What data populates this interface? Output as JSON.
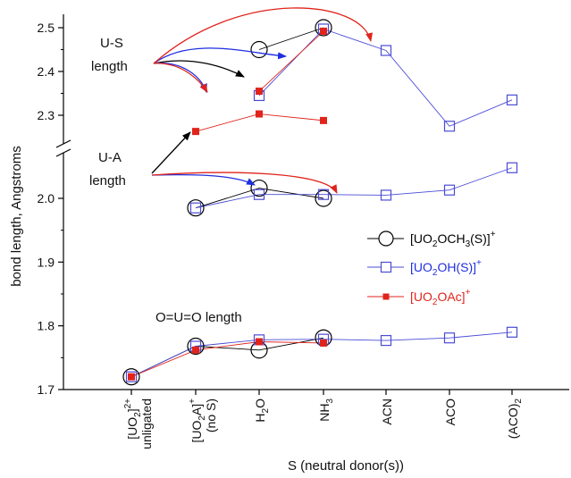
{
  "chart_data": {
    "type": "scatter",
    "xlabel": "S (neutral donor(s))",
    "ylabel": "bond length, Angstroms",
    "categories": [
      {
        "main": "[UO",
        "sub": "2",
        "rest": "]",
        "sup": "2+",
        "line2": "unligated"
      },
      {
        "main": "[UO",
        "sub": "2",
        "rest": "A]",
        "sup": "+",
        "line2": "(no S)"
      },
      {
        "main": "H",
        "sub": "2",
        "rest": "O",
        "sup": "",
        "line2": ""
      },
      {
        "main": "NH",
        "sub": "3",
        "rest": "",
        "sup": "",
        "line2": ""
      },
      {
        "main": "ACN",
        "sub": "",
        "rest": "",
        "sup": "",
        "line2": ""
      },
      {
        "main": "ACO",
        "sub": "",
        "rest": "",
        "sup": "",
        "line2": ""
      },
      {
        "main": "(ACO)",
        "sub": "2",
        "rest": "",
        "sup": "",
        "line2": ""
      }
    ],
    "y_axis": {
      "lower_segment": {
        "range": [
          1.7,
          2.05
        ],
        "ticks": [
          "1.7",
          "1.8",
          "1.9",
          "2.0"
        ]
      },
      "upper_segment": {
        "range": [
          2.25,
          2.53
        ],
        "ticks": [
          "2.3",
          "2.4",
          "2.5"
        ]
      },
      "axis_break": true
    },
    "series": [
      {
        "name": "[UO2OCH3(S)]+",
        "legend": {
          "a": "[UO",
          "s1": "2",
          "b": "OCH",
          "s2": "3",
          "c": "(S)]",
          "sup": "+"
        },
        "color": "#000000",
        "marker": "open-circle",
        "groups": [
          [
            [
              0,
              1.72
            ],
            [
              1,
              1.768
            ],
            [
              2,
              1.762
            ],
            [
              3,
              1.781
            ]
          ],
          [
            [
              1,
              1.985
            ],
            [
              2,
              2.016
            ],
            [
              3,
              2.0
            ]
          ],
          [
            [
              2,
              2.45
            ],
            [
              3,
              2.5
            ]
          ]
        ]
      },
      {
        "name": "[UO2OH(S)]+",
        "legend": {
          "a": "[UO",
          "s1": "2",
          "b": "OH(S)]",
          "s2": "",
          "c": "",
          "sup": "+"
        },
        "color": "#4b4bd6",
        "marker": "open-square",
        "groups": [
          [
            [
              0,
              1.72
            ],
            [
              1,
              1.768
            ],
            [
              2,
              1.778
            ],
            [
              3,
              1.779
            ],
            [
              4,
              1.777
            ],
            [
              5,
              1.781
            ],
            [
              6,
              1.79
            ]
          ],
          [
            [
              1,
              1.985
            ],
            [
              2,
              2.006
            ],
            [
              3,
              2.006
            ],
            [
              4,
              2.005
            ],
            [
              5,
              2.013
            ],
            [
              6,
              2.048
            ]
          ],
          [
            [
              2,
              2.345
            ],
            [
              3,
              2.497
            ],
            [
              4,
              2.448
            ],
            [
              5,
              2.275
            ],
            [
              6,
              2.335
            ]
          ]
        ]
      },
      {
        "name": "[UO2OAc]+",
        "legend": {
          "a": "[UO",
          "s1": "2",
          "b": "OAc]",
          "s2": "",
          "c": "",
          "sup": "+"
        },
        "color": "#e0241c",
        "marker": "filled-square",
        "groups": [
          [
            [
              0,
              1.72
            ],
            [
              1,
              1.762
            ],
            [
              2,
              1.775
            ],
            [
              3,
              1.773
            ]
          ],
          [
            [
              1,
              2.263
            ],
            [
              2,
              2.303
            ],
            [
              3,
              2.288
            ]
          ],
          [
            [
              2,
              2.355
            ],
            [
              3,
              2.492
            ]
          ]
        ]
      }
    ],
    "annotations": [
      {
        "id": "us",
        "lines": [
          "U-S",
          "length"
        ]
      },
      {
        "id": "ua",
        "lines": [
          "U-A",
          "length"
        ]
      },
      {
        "id": "ouo",
        "lines": [
          "O=U=O length"
        ]
      }
    ]
  }
}
